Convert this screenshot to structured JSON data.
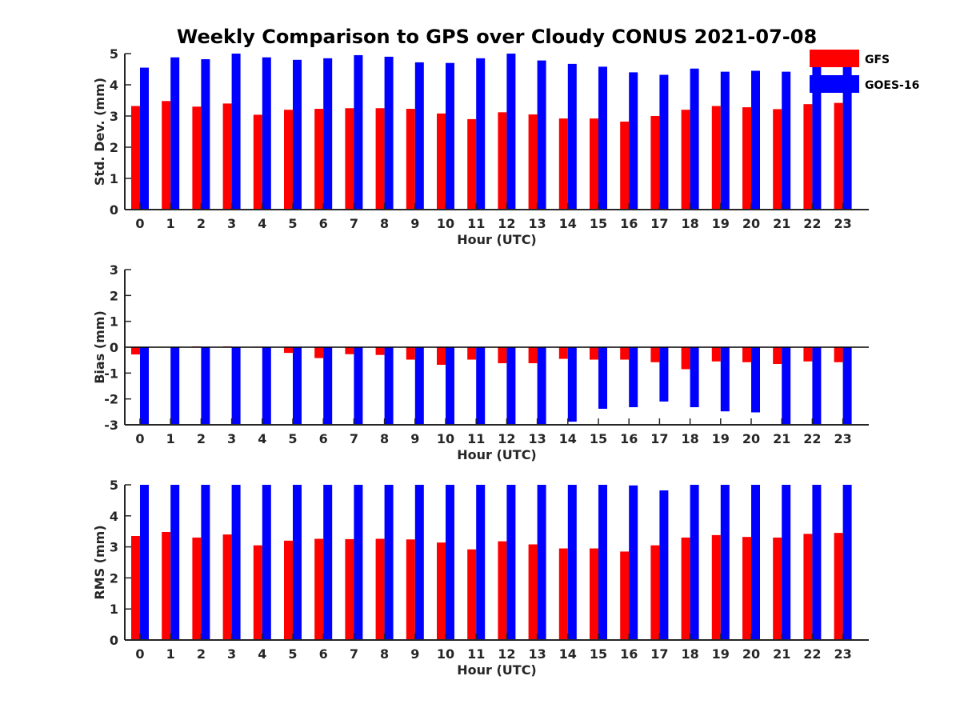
{
  "title": "Weekly Comparison to GPS over Cloudy CONUS 2021-07-08",
  "colors": {
    "GFS": "#ff0000",
    "GOES-16": "#0000ff"
  },
  "legend": {
    "entries": [
      "GFS",
      "GOES-16"
    ],
    "placement": "top-right"
  },
  "chart_data": [
    {
      "type": "bar",
      "categories": [
        "0",
        "1",
        "2",
        "3",
        "4",
        "5",
        "6",
        "7",
        "8",
        "9",
        "10",
        "11",
        "12",
        "13",
        "14",
        "15",
        "16",
        "17",
        "18",
        "19",
        "20",
        "21",
        "22",
        "23"
      ],
      "xlabel": "Hour (UTC)",
      "ylabel": "Std. Dev. (mm)",
      "ylim": [
        0,
        5
      ],
      "yticks": [
        0,
        1,
        2,
        3,
        4,
        5
      ],
      "series": [
        {
          "name": "GFS",
          "values": [
            3.32,
            3.48,
            3.3,
            3.4,
            3.04,
            3.2,
            3.23,
            3.25,
            3.25,
            3.23,
            3.08,
            2.9,
            3.12,
            3.05,
            2.92,
            2.92,
            2.82,
            3.0,
            3.2,
            3.32,
            3.28,
            3.22,
            3.38,
            3.42
          ]
        },
        {
          "name": "GOES-16",
          "values": [
            4.55,
            4.88,
            4.82,
            5.0,
            4.88,
            4.8,
            4.85,
            4.95,
            4.9,
            4.72,
            4.7,
            4.85,
            5.0,
            4.78,
            4.67,
            4.58,
            4.4,
            4.32,
            4.52,
            4.42,
            4.45,
            4.42,
            4.65,
            4.75
          ]
        }
      ]
    },
    {
      "type": "bar",
      "categories": [
        "0",
        "1",
        "2",
        "3",
        "4",
        "5",
        "6",
        "7",
        "8",
        "9",
        "10",
        "11",
        "12",
        "13",
        "14",
        "15",
        "16",
        "17",
        "18",
        "19",
        "20",
        "21",
        "22",
        "23"
      ],
      "xlabel": "Hour (UTC)",
      "ylabel": "Bias (mm)",
      "ylim": [
        -3,
        3
      ],
      "yticks": [
        -3,
        -2,
        -1,
        0,
        1,
        2,
        3
      ],
      "series": [
        {
          "name": "GFS",
          "values": [
            -0.28,
            0.0,
            0.03,
            0.03,
            0.02,
            -0.22,
            -0.42,
            -0.27,
            -0.3,
            -0.48,
            -0.68,
            -0.48,
            -0.62,
            -0.62,
            -0.45,
            -0.48,
            -0.48,
            -0.58,
            -0.85,
            -0.55,
            -0.58,
            -0.65,
            -0.55,
            -0.58
          ]
        },
        {
          "name": "GOES-16",
          "values": [
            -3.0,
            -3.0,
            -3.0,
            -3.0,
            -3.0,
            -3.0,
            -3.0,
            -3.0,
            -3.0,
            -3.0,
            -3.0,
            -3.0,
            -3.0,
            -3.0,
            -2.88,
            -2.38,
            -2.32,
            -2.1,
            -2.32,
            -2.48,
            -2.52,
            -3.0,
            -3.0,
            -3.0
          ]
        }
      ]
    },
    {
      "type": "bar",
      "categories": [
        "0",
        "1",
        "2",
        "3",
        "4",
        "5",
        "6",
        "7",
        "8",
        "9",
        "10",
        "11",
        "12",
        "13",
        "14",
        "15",
        "16",
        "17",
        "18",
        "19",
        "20",
        "21",
        "22",
        "23"
      ],
      "xlabel": "Hour (UTC)",
      "ylabel": "RMS (mm)",
      "ylim": [
        0,
        5
      ],
      "yticks": [
        0,
        1,
        2,
        3,
        4,
        5
      ],
      "series": [
        {
          "name": "GFS",
          "values": [
            3.35,
            3.48,
            3.3,
            3.4,
            3.05,
            3.2,
            3.26,
            3.25,
            3.26,
            3.24,
            3.14,
            2.92,
            3.18,
            3.08,
            2.95,
            2.95,
            2.85,
            3.05,
            3.3,
            3.38,
            3.32,
            3.3,
            3.42,
            3.45
          ]
        },
        {
          "name": "GOES-16",
          "values": [
            5.0,
            5.0,
            5.0,
            5.0,
            5.0,
            5.0,
            5.0,
            5.0,
            5.0,
            5.0,
            5.0,
            5.0,
            5.0,
            5.0,
            5.0,
            5.0,
            4.98,
            4.82,
            5.0,
            5.0,
            5.0,
            5.0,
            5.0,
            5.0
          ]
        }
      ]
    }
  ]
}
